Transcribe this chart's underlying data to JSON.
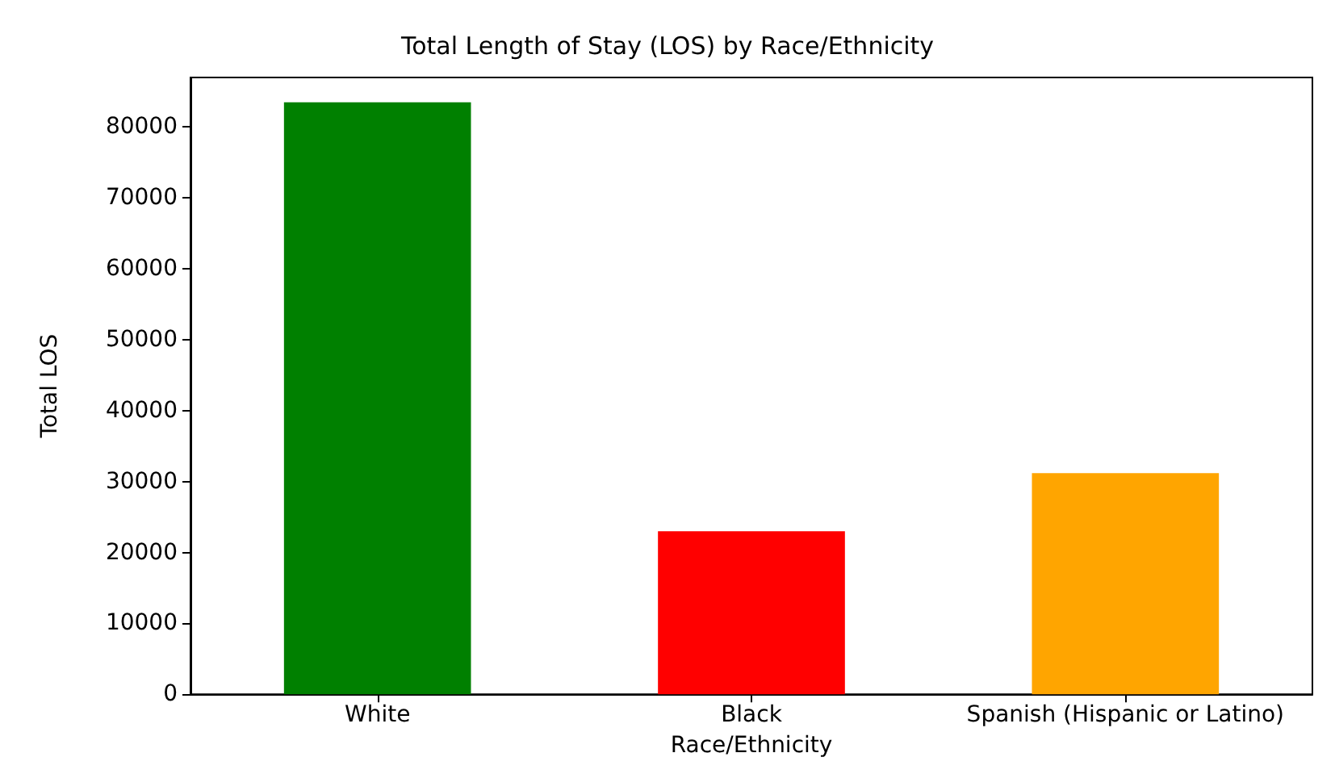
{
  "chart_data": {
    "type": "bar",
    "title": "Total Length of Stay (LOS) by Race/Ethnicity",
    "xlabel": "Race/Ethnicity",
    "ylabel": "Total LOS",
    "categories": [
      "White",
      "Black",
      "Spanish (Hispanic or Latino)"
    ],
    "values": [
      83500,
      23000,
      31200
    ],
    "colors": [
      "#008000",
      "#ff0000",
      "#ffa500"
    ],
    "ylim": [
      0,
      87000
    ],
    "yticks": [
      0,
      10000,
      20000,
      30000,
      40000,
      50000,
      60000,
      70000,
      80000
    ],
    "grid": false
  }
}
